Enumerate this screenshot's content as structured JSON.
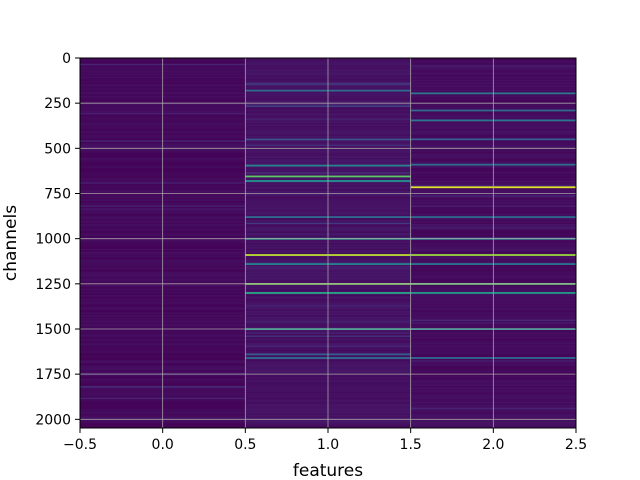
{
  "chart_data": {
    "type": "heatmap",
    "title": "",
    "xlabel": "features",
    "ylabel": "channels",
    "xlim": [
      -0.5,
      2.5
    ],
    "ylim": [
      2048,
      0
    ],
    "y_inverted": true,
    "grid": true,
    "colormap": "viridis",
    "n_channels": 2048,
    "x_ticks": [
      -0.5,
      0.0,
      0.5,
      1.0,
      1.5,
      2.0,
      2.5
    ],
    "x_tick_labels": [
      "−0.5",
      "0.0",
      "0.5",
      "1.0",
      "1.5",
      "2.0",
      "2.5"
    ],
    "y_ticks": [
      0,
      250,
      500,
      750,
      1000,
      1250,
      1500,
      1750,
      2000
    ],
    "y_tick_labels": [
      "0",
      "250",
      "500",
      "750",
      "1000",
      "1250",
      "1500",
      "1750",
      "2000"
    ],
    "features": [
      {
        "index": 0,
        "base_level": 0.03,
        "highlights": []
      },
      {
        "index": 1,
        "base_level": 0.06,
        "highlights": [
          {
            "channel": 180,
            "value": 0.35
          },
          {
            "channel": 450,
            "value": 0.25
          },
          {
            "channel": 595,
            "value": 0.45
          },
          {
            "channel": 655,
            "value": 0.75
          },
          {
            "channel": 680,
            "value": 0.5
          },
          {
            "channel": 880,
            "value": 0.35
          },
          {
            "channel": 1000,
            "value": 0.55
          },
          {
            "channel": 1090,
            "value": 0.9
          },
          {
            "channel": 1140,
            "value": 0.45
          },
          {
            "channel": 1250,
            "value": 0.8
          },
          {
            "channel": 1300,
            "value": 0.6
          },
          {
            "channel": 1500,
            "value": 0.55
          },
          {
            "channel": 1640,
            "value": 0.3
          },
          {
            "channel": 1660,
            "value": 0.35
          }
        ]
      },
      {
        "index": 2,
        "base_level": 0.04,
        "highlights": [
          {
            "channel": 195,
            "value": 0.4
          },
          {
            "channel": 290,
            "value": 0.35
          },
          {
            "channel": 345,
            "value": 0.4
          },
          {
            "channel": 450,
            "value": 0.3
          },
          {
            "channel": 590,
            "value": 0.35
          },
          {
            "channel": 715,
            "value": 0.95
          },
          {
            "channel": 880,
            "value": 0.35
          },
          {
            "channel": 1000,
            "value": 0.45
          },
          {
            "channel": 1090,
            "value": 0.85
          },
          {
            "channel": 1140,
            "value": 0.4
          },
          {
            "channel": 1250,
            "value": 0.75
          },
          {
            "channel": 1300,
            "value": 0.55
          },
          {
            "channel": 1500,
            "value": 0.5
          },
          {
            "channel": 1660,
            "value": 0.35
          }
        ]
      }
    ]
  }
}
